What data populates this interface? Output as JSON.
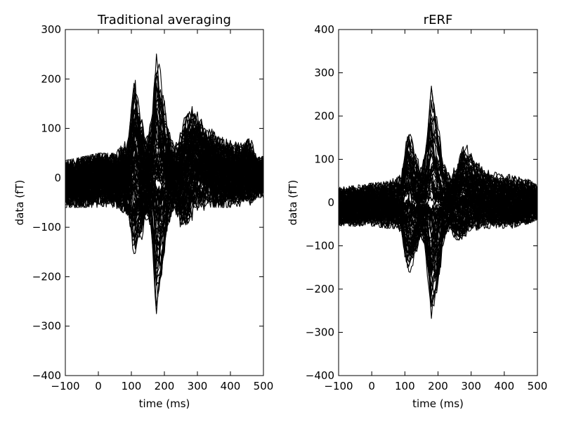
{
  "chart_data": [
    {
      "type": "line",
      "title": "Traditional averaging",
      "xlabel": "time (ms)",
      "ylabel": "data (fT)",
      "xlim": [
        -100,
        500
      ],
      "ylim": [
        -400,
        300
      ],
      "xticks": [
        -100,
        0,
        100,
        200,
        300,
        400,
        500
      ],
      "xtick_labels": [
        "−100",
        "0",
        "100",
        "200",
        "300",
        "400",
        "500"
      ],
      "yticks": [
        -400,
        -300,
        -200,
        -100,
        0,
        100,
        200,
        300
      ],
      "ytick_labels": [
        "−400",
        "−300",
        "−200",
        "−100",
        "0",
        "100",
        "200",
        "300"
      ],
      "grid": false,
      "series_color": "#000000",
      "series_count": 100,
      "noise_amplitude": 30,
      "envelope": {
        "x": [
          -100,
          0,
          50,
          75,
          90,
          110,
          130,
          145,
          160,
          175,
          190,
          210,
          230,
          250,
          270,
          285,
          300,
          330,
          380,
          430,
          460,
          480,
          500
        ],
        "max": [
          35,
          50,
          50,
          70,
          80,
          240,
          130,
          80,
          120,
          300,
          230,
          120,
          60,
          100,
          150,
          160,
          140,
          110,
          80,
          70,
          85,
          40,
          45
        ],
        "min": [
          -60,
          -60,
          -60,
          -70,
          -90,
          -195,
          -150,
          -100,
          -120,
          -325,
          -260,
          -110,
          -60,
          -110,
          -120,
          -90,
          -80,
          -60,
          -60,
          -60,
          -60,
          -40,
          -40
        ]
      }
    },
    {
      "type": "line",
      "title": "rERF",
      "xlabel": "time (ms)",
      "ylabel": "data (fT)",
      "xlim": [
        -100,
        500
      ],
      "ylim": [
        -400,
        400
      ],
      "xticks": [
        -100,
        0,
        100,
        200,
        300,
        400,
        500
      ],
      "xtick_labels": [
        "−100",
        "0",
        "100",
        "200",
        "300",
        "400",
        "500"
      ],
      "yticks": [
        -400,
        -300,
        -200,
        -100,
        0,
        100,
        200,
        300,
        400
      ],
      "ytick_labels": [
        "−400",
        "−300",
        "−200",
        "−100",
        "0",
        "100",
        "200",
        "300",
        "400"
      ],
      "grid": false,
      "series_color": "#000000",
      "series_count": 100,
      "noise_amplitude": 25,
      "envelope": {
        "x": [
          -100,
          0,
          50,
          75,
          90,
          110,
          130,
          145,
          160,
          180,
          195,
          215,
          235,
          255,
          275,
          290,
          310,
          340,
          390,
          440,
          470,
          500
        ],
        "max": [
          35,
          45,
          50,
          60,
          70,
          230,
          140,
          90,
          120,
          315,
          240,
          110,
          70,
          100,
          165,
          140,
          110,
          80,
          70,
          60,
          55,
          40
        ],
        "min": [
          -55,
          -55,
          -60,
          -60,
          -80,
          -195,
          -150,
          -100,
          -120,
          -305,
          -250,
          -110,
          -60,
          -100,
          -110,
          -80,
          -70,
          -60,
          -60,
          -60,
          -50,
          -40
        ]
      }
    }
  ]
}
